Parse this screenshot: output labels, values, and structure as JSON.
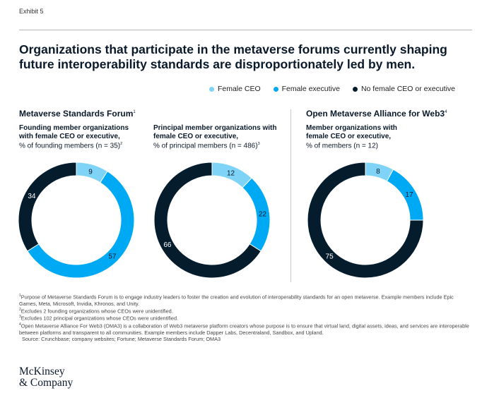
{
  "exhibit": "Exhibit 5",
  "title": "Organizations that participate in the metaverse forums currently shaping future interoperability standards are disproportionately led by men.",
  "legend": [
    {
      "label": "Female CEO",
      "color": "#7ed3f7"
    },
    {
      "label": "Female executive",
      "color": "#00a9f4"
    },
    {
      "label": "No female CEO or executive",
      "color": "#051c2c"
    }
  ],
  "sections": [
    {
      "title": "Metaverse Standards Forum",
      "sup": "1"
    },
    {
      "title": "Open Metaverse Alliance for Web3",
      "sup": "4"
    }
  ],
  "chart_data": [
    {
      "type": "pie",
      "subtitle_bold": "Founding member organizations with female CEO or executive,",
      "subtitle_rest": "% of founding members (n = 35)",
      "subtitle_sup": "2",
      "categories": [
        "Female CEO",
        "Female executive",
        "No female CEO or executive"
      ],
      "values": [
        9,
        57,
        34
      ]
    },
    {
      "type": "pie",
      "subtitle_bold": "Principal member organizations with female CEO or executive,",
      "subtitle_rest": "% of principal members (n = 486)",
      "subtitle_sup": "3",
      "categories": [
        "Female CEO",
        "Female executive",
        "No female CEO or executive"
      ],
      "values": [
        12,
        22,
        66
      ]
    },
    {
      "type": "pie",
      "subtitle_bold": "Member organizations with female CEO or executive,",
      "subtitle_rest": "% of members (n = 12)",
      "subtitle_sup": "",
      "categories": [
        "Female CEO",
        "Female executive",
        "No female CEO or executive"
      ],
      "values": [
        8,
        17,
        75
      ]
    }
  ],
  "footnotes": [
    {
      "sup": "1",
      "text": "Purpose of Metaverse Standards Forum is to engage industry leaders to foster the creation and evolution of interoperability standards for an open metaverse. Example members include Epic Games, Meta, Microsoft, Invidia, Khronos, and Unity."
    },
    {
      "sup": "2",
      "text": "Excludes 2 founding organizations whose CEOs were unidentified."
    },
    {
      "sup": "3",
      "text": "Excludes 102 principal organizations whose CEOs were unidentified."
    },
    {
      "sup": "4",
      "text": "Open Metaverse Alliance For Web3 (OMA3) is a collaboration of Web3 metaverse platform creators whose purpose is to ensure that virtual land, digital assets, ideas, and services are interoperable between platforms and transparent to all communities. Example members include Dapper Labs, Decentraland, Sandbox, and Upland."
    }
  ],
  "source": "Source: Crunchbase; company websites; Fortune; Metaverse Standards Forum; OMA3",
  "logo": {
    "line1": "McKinsey",
    "line2": "& Company"
  }
}
